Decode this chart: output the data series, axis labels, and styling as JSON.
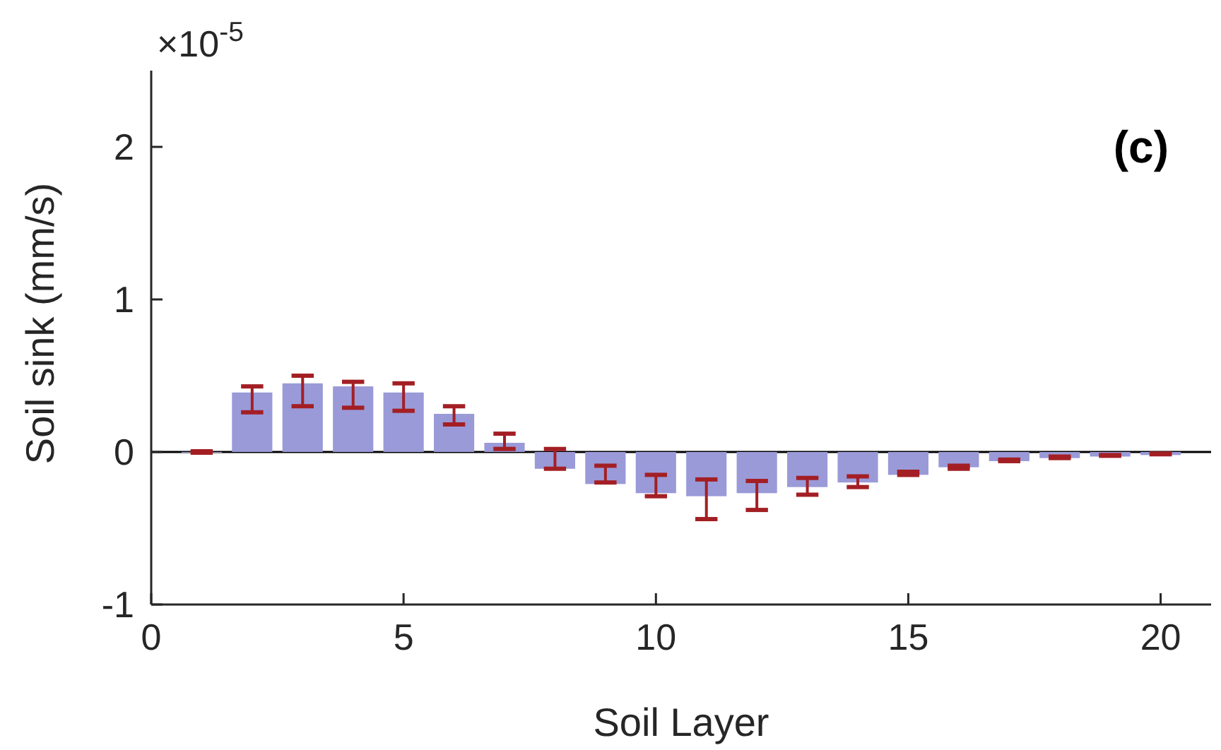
{
  "chart_data": {
    "type": "bar",
    "xlabel": "Soil Layer",
    "ylabel": "Soil sink (mm/s)",
    "annotations": [
      "×10$^{-5}$",
      "(c)"
    ],
    "x": [
      1,
      2,
      3,
      4,
      5,
      6,
      7,
      8,
      9,
      10,
      11,
      12,
      13,
      14,
      15,
      16,
      17,
      18,
      19,
      20
    ],
    "values": [
      0,
      0.39,
      0.45,
      0.43,
      0.39,
      0.25,
      0.06,
      -0.11,
      -0.21,
      -0.27,
      -0.29,
      -0.27,
      -0.23,
      -0.2,
      -0.15,
      -0.1,
      -0.06,
      -0.04,
      -0.03,
      -0.02
    ],
    "errors": [
      [
        -0.005,
        0.005
      ],
      [
        0.26,
        0.43
      ],
      [
        0.3,
        0.5
      ],
      [
        0.29,
        0.46
      ],
      [
        0.27,
        0.45
      ],
      [
        0.18,
        0.3
      ],
      [
        0.02,
        0.12
      ],
      [
        -0.11,
        0.02
      ],
      [
        -0.2,
        -0.09
      ],
      [
        -0.29,
        -0.15
      ],
      [
        -0.44,
        -0.18
      ],
      [
        -0.38,
        -0.19
      ],
      [
        -0.28,
        -0.17
      ],
      [
        -0.23,
        -0.16
      ],
      [
        -0.15,
        -0.13
      ],
      [
        -0.11,
        -0.09
      ],
      [
        -0.06,
        -0.05
      ],
      [
        -0.04,
        -0.03
      ],
      [
        -0.025,
        -0.02
      ],
      [
        -0.015,
        -0.01
      ]
    ],
    "color": "#9a9ad8",
    "xlim": [
      0,
      21
    ],
    "xticks": [
      0,
      5,
      10,
      15,
      20
    ],
    "ylim": [
      -1,
      2.5
    ],
    "yticks": [
      -1,
      0,
      1,
      2
    ],
    "ref_lines": [
      {
        "axis": "y",
        "value": 0,
        "color": "#000000"
      }
    ],
    "grid": false
  }
}
